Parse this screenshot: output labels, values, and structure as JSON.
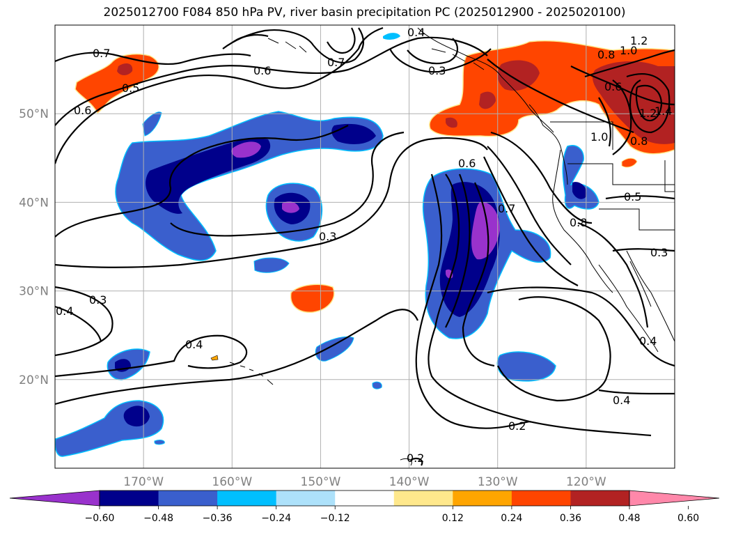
{
  "title": "2025012700 F084 850 hPa PV, river basin precipitation PC (2025012900 - 2025020100)",
  "map": {
    "lon_range": [
      -180,
      -110
    ],
    "lat_range": [
      10,
      60
    ],
    "lon_ticks": [
      {
        "value": -170,
        "label": "170°W"
      },
      {
        "value": -160,
        "label": "160°W"
      },
      {
        "value": -150,
        "label": "150°W"
      },
      {
        "value": -140,
        "label": "140°W"
      },
      {
        "value": -130,
        "label": "130°W"
      },
      {
        "value": -120,
        "label": "120°W"
      }
    ],
    "lat_ticks": [
      {
        "value": 20,
        "label": "20°N"
      },
      {
        "value": 30,
        "label": "30°N"
      },
      {
        "value": 40,
        "label": "40°N"
      },
      {
        "value": 50,
        "label": "50°N"
      }
    ],
    "grid": true
  },
  "contour_labels": [
    "0.7",
    "0.5",
    "0.6",
    "0.6",
    "0.7",
    "0.4",
    "0.3",
    "1.2",
    "0.8",
    "1.0",
    "0.6",
    "1.2",
    "1.4",
    "1.0",
    "0.8",
    "0.6",
    "0.7",
    "0.8",
    "0.5",
    "0.3",
    "0.3",
    "0.3",
    "0.4",
    "0.4",
    "0.4",
    "0.4",
    "0.2",
    "0.2"
  ],
  "colorbar": {
    "colors": [
      "#9932CC",
      "#00008B",
      "#3A5FCD",
      "#00BFFF",
      "#ADE1FA",
      "#FFFFFF",
      "#FFE88C",
      "#FFA500",
      "#FF4500",
      "#B22222",
      "#FF88AA"
    ],
    "tick_labels": [
      "−0.60",
      "−0.48",
      "−0.36",
      "−0.24",
      "−0.12",
      "0.12",
      "0.24",
      "0.36",
      "0.48",
      "0.60"
    ]
  }
}
